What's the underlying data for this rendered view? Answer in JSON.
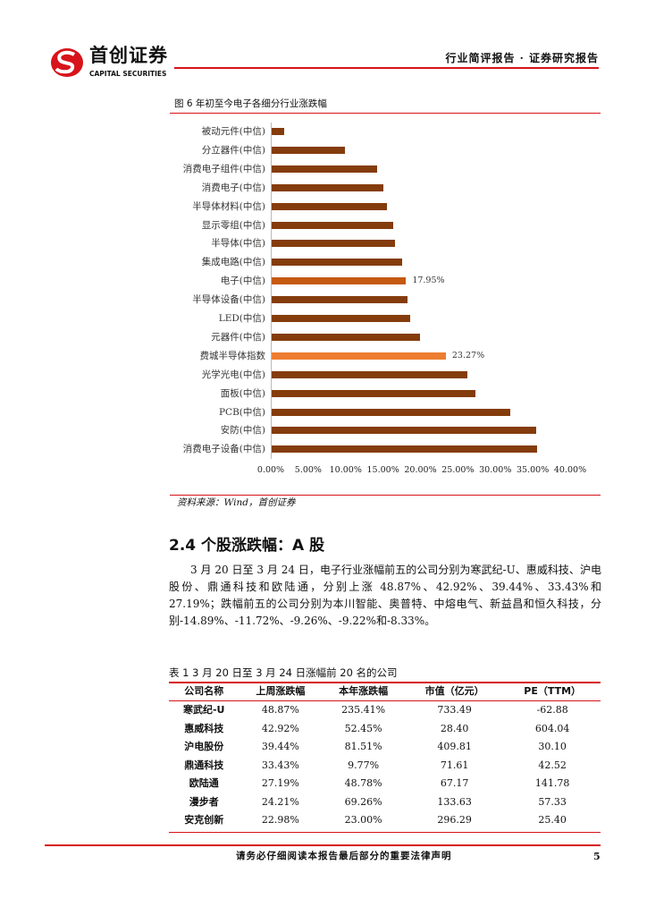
{
  "header": {
    "logo_cn": "首创证券",
    "logo_en": "CAPITAL SECURITIES",
    "report_type": "行业简评报告 · 证券研究报告"
  },
  "figure": {
    "caption": "图 6 年初至今电子各细分行业涨跌幅",
    "source": "资料来源：Wind，首创证券"
  },
  "chart_data": {
    "type": "bar",
    "orientation": "horizontal",
    "categories": [
      "被动元件(中信)",
      "分立器件(中信)",
      "消费电子组件(中信)",
      "消费电子(中信)",
      "半导体材料(中信)",
      "显示零组(中信)",
      "半导体(中信)",
      "集成电路(中信)",
      "电子(中信)",
      "半导体设备(中信)",
      "LED(中信)",
      "元器件(中信)",
      "费城半导体指数",
      "光学光电(中信)",
      "面板(中信)",
      "PCB(中信)",
      "安防(中信)",
      "消费电子设备(中信)"
    ],
    "values": [
      1.7,
      9.8,
      14.1,
      14.9,
      15.4,
      16.2,
      16.5,
      17.4,
      17.95,
      18.2,
      18.5,
      19.8,
      23.27,
      26.1,
      27.2,
      31.9,
      35.3,
      35.5
    ],
    "data_labels": {
      "8": "17.95%",
      "12": "23.27%"
    },
    "xlim": [
      0,
      40
    ],
    "xticks": [
      "0.00%",
      "5.00%",
      "10.00%",
      "15.00%",
      "20.00%",
      "25.00%",
      "30.00%",
      "35.00%",
      "40.00%"
    ],
    "grid": false,
    "colors": {
      "default": "#843C0C",
      "highlight_1": "#C55A11",
      "highlight_2": "#ED7D31"
    },
    "highlight": {
      "8": "#C55A11",
      "12": "#ED7D31"
    }
  },
  "section": {
    "heading": "2.4 个股涨跌幅：A 股",
    "paragraph": "3 月 20 日至 3 月 24 日，电子行业涨幅前五的公司分别为寒武纪-U、惠威科技、沪电股份、鼎通科技和欧陆通，分别上涨 48.87%、42.92%、39.44%、33.43%和 27.19%；跌幅前五的公司分别为本川智能、奥普特、中熔电气、新益昌和恒久科技，分别-14.89%、-11.72%、-9.26%、-9.22%和-8.33%。"
  },
  "table": {
    "caption": "表 1 3 月 20 日至 3 月 24 日涨幅前 20 名的公司",
    "headers": [
      "公司名称",
      "上周涨跌幅",
      "本年涨跌幅",
      "市值（亿元）",
      "PE（TTM）"
    ],
    "rows": [
      [
        "寒武纪-U",
        "48.87%",
        "235.41%",
        "733.49",
        "-62.88"
      ],
      [
        "惠威科技",
        "42.92%",
        "52.45%",
        "28.40",
        "604.04"
      ],
      [
        "沪电股份",
        "39.44%",
        "81.51%",
        "409.81",
        "30.10"
      ],
      [
        "鼎通科技",
        "33.43%",
        "9.77%",
        "71.61",
        "42.52"
      ],
      [
        "欧陆通",
        "27.19%",
        "48.78%",
        "67.17",
        "141.78"
      ],
      [
        "漫步者",
        "24.21%",
        "69.26%",
        "133.63",
        "57.33"
      ],
      [
        "安克创新",
        "22.98%",
        "23.00%",
        "296.29",
        "25.40"
      ]
    ]
  },
  "footer": {
    "disclaimer": "请务必仔细阅读本报告最后部分的重要法律声明",
    "page_number": "5"
  },
  "colors": {
    "brand_red": "#D7141A"
  }
}
